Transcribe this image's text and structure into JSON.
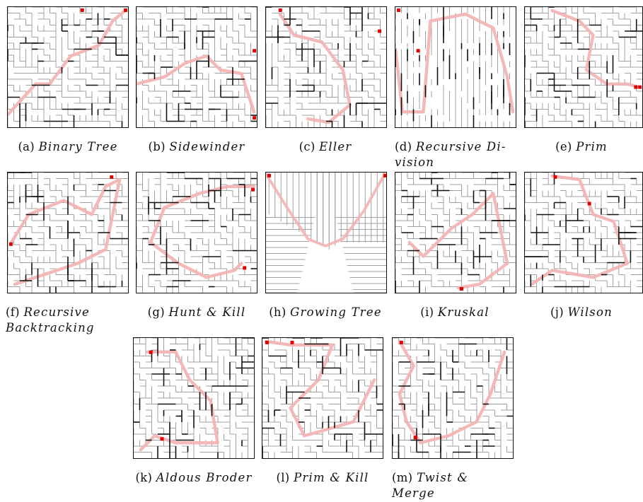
{
  "figures": [
    {
      "label": "(a)",
      "name": "Binary Tree",
      "path": "#f3b5b5",
      "wall": "#111",
      "grey": "#9a9a9a"
    },
    {
      "label": "(b)",
      "name": "Sidewinder"
    },
    {
      "label": "(c)",
      "name": "Eller"
    },
    {
      "label": "(d)",
      "name": "Recursive Di-vision"
    },
    {
      "label": "(e)",
      "name": "Prim"
    },
    {
      "label": "(f)",
      "name": "Recursive Backtracking"
    },
    {
      "label": "(g)",
      "name": "Hunt & Kill"
    },
    {
      "label": "(h)",
      "name": "Growing Tree"
    },
    {
      "label": "(i)",
      "name": "Kruskal"
    },
    {
      "label": "(j)",
      "name": "Wilson"
    },
    {
      "label": "(k)",
      "name": "Aldous Broder"
    },
    {
      "label": "(l)",
      "name": "Prim & Kill"
    },
    {
      "label": "(m)",
      "name": "Twist & Merge"
    }
  ],
  "colors": {
    "path": "#f4b4b4",
    "endpoint": "#e00000",
    "wall": "#111111",
    "grid": "#a0a0a0"
  }
}
